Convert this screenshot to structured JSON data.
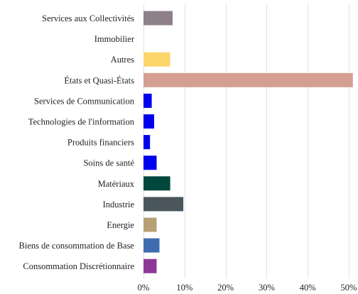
{
  "chart_data": {
    "type": "bar",
    "orientation": "horizontal",
    "title": "",
    "xlabel": "",
    "ylabel": "",
    "xlim": [
      0,
      50
    ],
    "grid": true,
    "legend": "none",
    "x_tick_labels": [
      "0%",
      "10%",
      "20%",
      "30%",
      "40%",
      "50%"
    ],
    "categories": [
      "Services aux Collectivités",
      "Immobilier",
      "Autres",
      "États et Quasi-États",
      "Services de Communication",
      "Technologies de l'information",
      "Produits financiers",
      "Soins de santé",
      "Matériaux",
      "Industrie",
      "Energie",
      "Biens de consommation de Base",
      "Consommation Discrétionnaire"
    ],
    "values": [
      7.1,
      0,
      6.5,
      51,
      2.0,
      2.6,
      1.6,
      3.2,
      6.5,
      9.7,
      3.2,
      3.9,
      3.2
    ],
    "colors": [
      "#8e8088",
      "#9e9e9e",
      "#fdd66a",
      "#d49f91",
      "#0000ee",
      "#0000ee",
      "#0000ee",
      "#0000ee",
      "#00483d",
      "#4a565c",
      "#b79f76",
      "#3f6cb1",
      "#8e3696"
    ]
  }
}
